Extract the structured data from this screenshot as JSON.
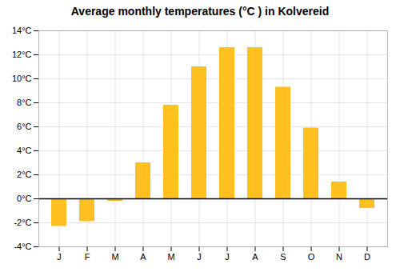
{
  "chart_data": {
    "type": "bar",
    "title": "Average monthly temperatures (°C ) in Kolvereid",
    "categories": [
      "J",
      "F",
      "M",
      "A",
      "M",
      "J",
      "J",
      "A",
      "S",
      "O",
      "N",
      "D"
    ],
    "values": [
      -2.3,
      -1.9,
      -0.2,
      3.0,
      7.8,
      11.0,
      12.6,
      12.6,
      9.3,
      5.9,
      1.4,
      -0.8
    ],
    "color": "#FFC020",
    "ylim": [
      -4,
      14
    ],
    "yticks": [
      {
        "value": -4,
        "label": "-4°C"
      },
      {
        "value": -2,
        "label": "-2°C"
      },
      {
        "value": 0,
        "label": "0°C"
      },
      {
        "value": 2,
        "label": "2°C"
      },
      {
        "value": 4,
        "label": "4°C"
      },
      {
        "value": 6,
        "label": "6°C"
      },
      {
        "value": 8,
        "label": "8°C"
      },
      {
        "value": 10,
        "label": "10°C"
      },
      {
        "value": 12,
        "label": "12°C"
      },
      {
        "value": 14,
        "label": "14°C"
      }
    ],
    "grid": true
  }
}
